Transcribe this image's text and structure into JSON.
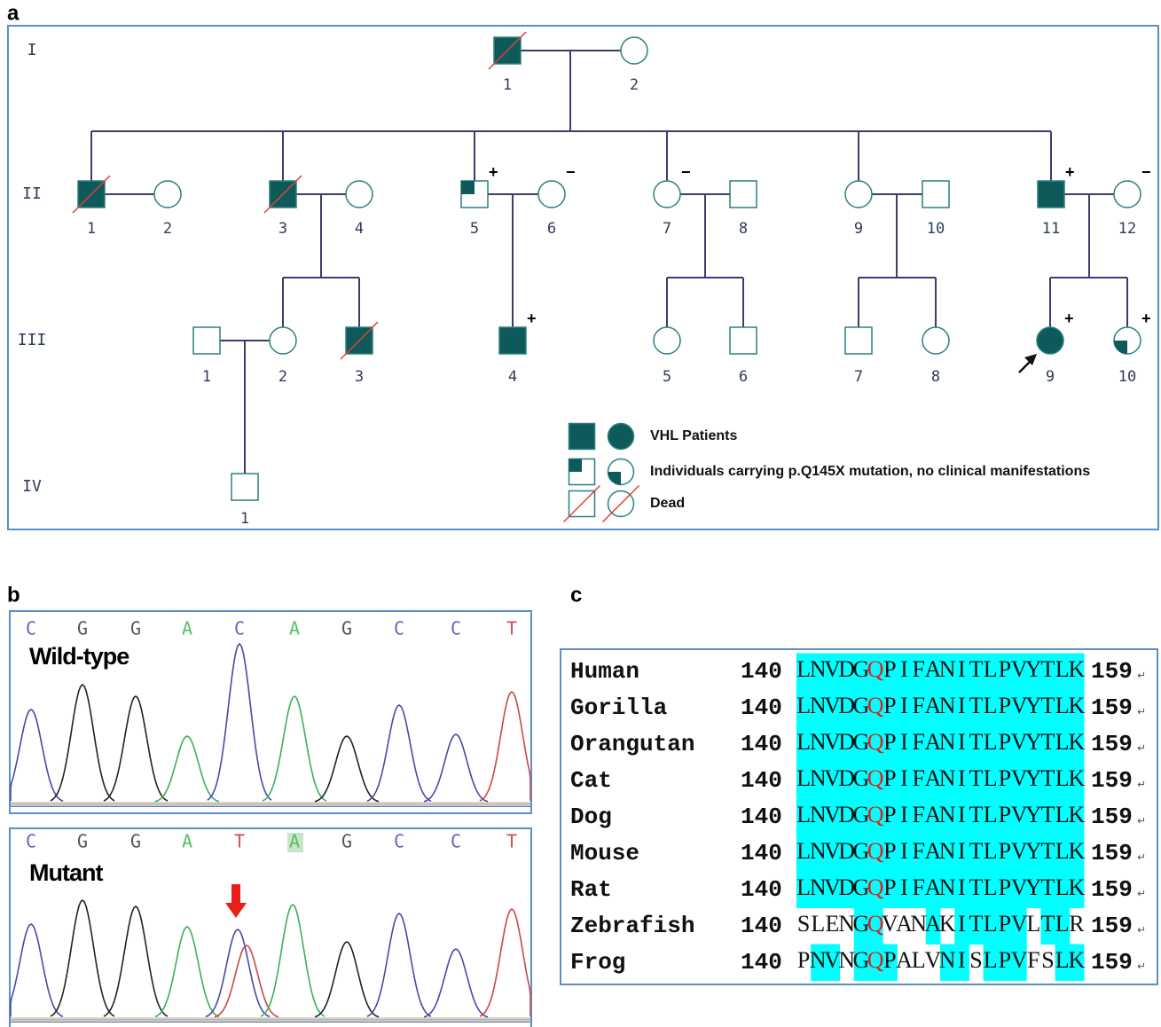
{
  "panel_a": {
    "label": "a",
    "generations": [
      "I",
      "II",
      "III",
      "IV"
    ],
    "individuals": [
      [
        {
          "label": "1"
        },
        {
          "label": "2"
        }
      ],
      [
        {
          "label": "1"
        },
        {
          "label": "2"
        },
        {
          "label": "3"
        },
        {
          "label": "4"
        },
        {
          "label": "5",
          "sign": "+"
        },
        {
          "label": "6",
          "sign": "−"
        },
        {
          "label": "7",
          "sign": "−"
        },
        {
          "label": "8"
        },
        {
          "label": "9"
        },
        {
          "label": "10"
        },
        {
          "label": "11",
          "sign": "+"
        },
        {
          "label": "12",
          "sign": "−"
        }
      ],
      [
        {
          "label": "1"
        },
        {
          "label": "2"
        },
        {
          "label": "3"
        },
        {
          "label": "4",
          "sign": "+"
        },
        {
          "label": "5"
        },
        {
          "label": "6"
        },
        {
          "label": "7"
        },
        {
          "label": "8"
        },
        {
          "label": "9",
          "sign": "+"
        },
        {
          "label": "10",
          "sign": "+"
        }
      ],
      [
        {
          "label": "1"
        }
      ]
    ],
    "legend": [
      "VHL Patients",
      "Individuals carrying p.Q145X mutation, no clinical manifestations",
      "Dead"
    ]
  },
  "panel_b": {
    "label": "b",
    "traces": [
      {
        "title": "Wild-type",
        "bases": [
          "C",
          "G",
          "G",
          "A",
          "C",
          "A",
          "G",
          "C",
          "C",
          "T"
        ]
      },
      {
        "title": "Mutant",
        "bases": [
          "C",
          "G",
          "G",
          "A",
          "T",
          "A",
          "G",
          "C",
          "C",
          "T"
        ]
      }
    ]
  },
  "panel_c": {
    "label": "c",
    "end_mark": "↵",
    "rows": [
      {
        "species": "Human",
        "start": 140,
        "sequence": "LNVDGQPIFANITLPVYTLK",
        "end": 159
      },
      {
        "species": "Gorilla",
        "start": 140,
        "sequence": "LNVDGQPIFANITLPVYTLK",
        "end": 159
      },
      {
        "species": "Orangutan",
        "start": 140,
        "sequence": "LNVDGQPIFANITLPVYTLK",
        "end": 159
      },
      {
        "species": "Cat",
        "start": 140,
        "sequence": "LNVDGQPIFANITLPVYTLK",
        "end": 159
      },
      {
        "species": "Dog",
        "start": 140,
        "sequence": "LNVDGQPIFANITLPVYTLK",
        "end": 159
      },
      {
        "species": "Mouse",
        "start": 140,
        "sequence": "LNVDGQPIFANITLPVYTLK",
        "end": 159
      },
      {
        "species": "Rat",
        "start": 140,
        "sequence": "LNVDGQPIFANITLPVYTLK",
        "end": 159
      },
      {
        "species": "Zebrafish",
        "start": 140,
        "sequence": "SLENGQVANAKITLPVLTLR",
        "end": 159
      },
      {
        "species": "Frog",
        "start": 140,
        "sequence": "PNVNGQPALVNISLPVFSLK",
        "end": 159
      }
    ]
  }
}
